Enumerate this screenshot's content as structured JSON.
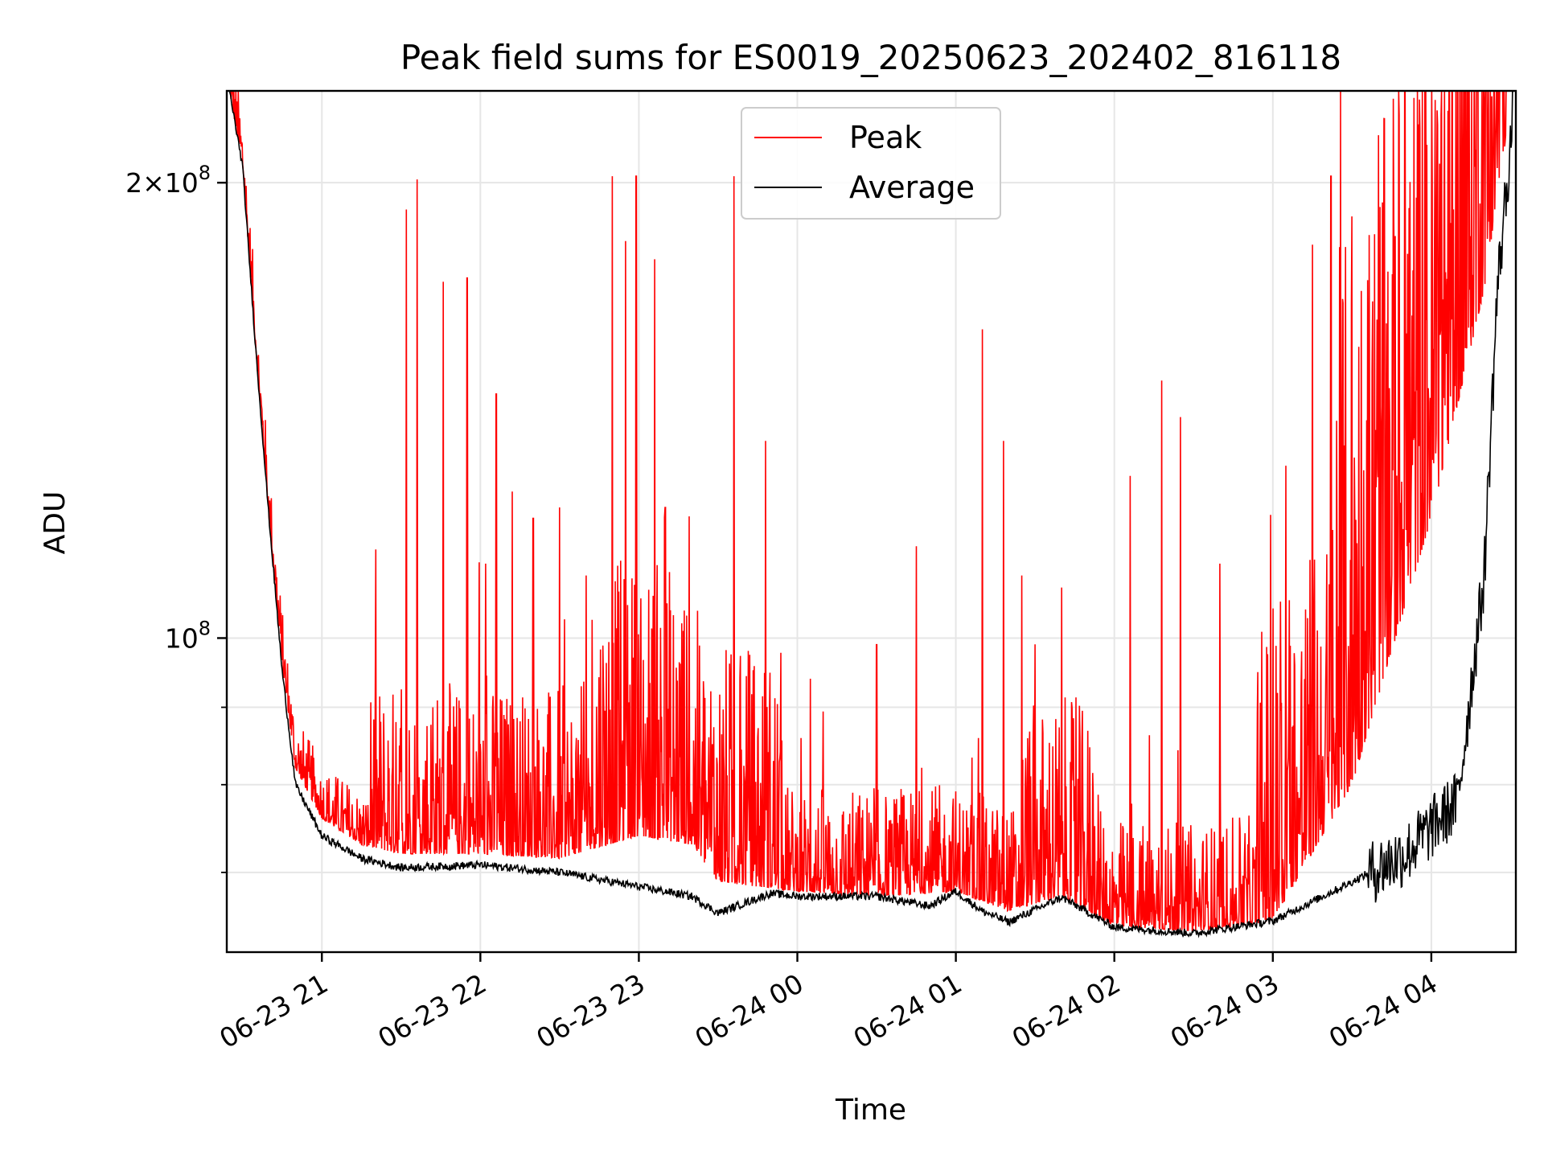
{
  "chart_data": {
    "type": "line",
    "title": "Peak field sums for ES0019_20250623_202402_816118",
    "xlabel": "Time",
    "ylabel": "ADU",
    "yscale": "log",
    "grid": true,
    "legend_placement": "upper-center",
    "xlim": [
      "2025-06-23 20:24",
      "2025-06-24 04:32"
    ],
    "ylim": [
      62000000,
      230000000
    ],
    "x_ticks": [
      {
        "value": "2025-06-23 21:00",
        "label": "06-23 21"
      },
      {
        "value": "2025-06-23 22:00",
        "label": "06-23 22"
      },
      {
        "value": "2025-06-23 23:00",
        "label": "06-23 23"
      },
      {
        "value": "2025-06-24 00:00",
        "label": "06-24 00"
      },
      {
        "value": "2025-06-24 01:00",
        "label": "06-24 01"
      },
      {
        "value": "2025-06-24 02:00",
        "label": "06-24 02"
      },
      {
        "value": "2025-06-24 03:00",
        "label": "06-24 03"
      },
      {
        "value": "2025-06-24 04:00",
        "label": "06-24 04"
      }
    ],
    "y_major_ticks": [
      {
        "value": 100000000,
        "label": "10^8"
      },
      {
        "value": 200000000,
        "label": "2×10^8"
      }
    ],
    "y_minor_ticks": [
      70000000,
      80000000,
      90000000
    ],
    "series": [
      {
        "name": "Peak",
        "color": "#ff0000",
        "baseline": [
          [
            "2025-06-23 20:25",
            230000000
          ],
          [
            "2025-06-23 20:30",
            205000000
          ],
          [
            "2025-06-23 20:35",
            155000000
          ],
          [
            "2025-06-23 20:40",
            120000000
          ],
          [
            "2025-06-23 20:45",
            96000000
          ],
          [
            "2025-06-23 20:50",
            82000000
          ],
          [
            "2025-06-23 21:00",
            76000000
          ],
          [
            "2025-06-23 21:15",
            73000000
          ],
          [
            "2025-06-23 21:30",
            72000000
          ],
          [
            "2025-06-23 22:00",
            72000000
          ],
          [
            "2025-06-23 22:30",
            71500000
          ],
          [
            "2025-06-23 23:00",
            74000000
          ],
          [
            "2025-06-23 23:20",
            73000000
          ],
          [
            "2025-06-23 23:30",
            69000000
          ],
          [
            "2025-06-24 00:00",
            68000000
          ],
          [
            "2025-06-24 00:30",
            67500000
          ],
          [
            "2025-06-24 01:00",
            68000000
          ],
          [
            "2025-06-24 01:20",
            66000000
          ],
          [
            "2025-06-24 01:40",
            67500000
          ],
          [
            "2025-06-24 02:00",
            64500000
          ],
          [
            "2025-06-24 02:30",
            64000000
          ],
          [
            "2025-06-24 03:00",
            65000000
          ],
          [
            "2025-06-24 03:30",
            80000000
          ],
          [
            "2025-06-24 04:00",
            120000000
          ],
          [
            "2025-06-24 04:20",
            170000000
          ],
          [
            "2025-06-24 04:30",
            225000000
          ]
        ],
        "spikes": [
          [
            "2025-06-23 21:28",
            88000000
          ],
          [
            "2025-06-23 21:32",
            192000000
          ],
          [
            "2025-06-23 21:36",
            201000000
          ],
          [
            "2025-06-23 21:42",
            90000000
          ],
          [
            "2025-06-23 21:46",
            172000000
          ],
          [
            "2025-06-23 21:55",
            173000000
          ],
          [
            "2025-06-23 22:02",
            112000000
          ],
          [
            "2025-06-23 22:06",
            145000000
          ],
          [
            "2025-06-23 22:12",
            125000000
          ],
          [
            "2025-06-23 22:20",
            120000000
          ],
          [
            "2025-06-23 22:30",
            122000000
          ],
          [
            "2025-06-23 22:40",
            110000000
          ],
          [
            "2025-06-23 22:50",
            202000000
          ],
          [
            "2025-06-23 22:55",
            183000000
          ],
          [
            "2025-06-23 22:59",
            202000000
          ],
          [
            "2025-06-23 23:06",
            178000000
          ],
          [
            "2025-06-23 23:10",
            122000000
          ],
          [
            "2025-06-23 23:36",
            202000000
          ],
          [
            "2025-06-23 23:48",
            135000000
          ],
          [
            "2025-06-24 00:05",
            94000000
          ],
          [
            "2025-06-24 00:30",
            99000000
          ],
          [
            "2025-06-24 00:45",
            115000000
          ],
          [
            "2025-06-24 01:10",
            160000000
          ],
          [
            "2025-06-24 01:18",
            135000000
          ],
          [
            "2025-06-24 01:25",
            110000000
          ],
          [
            "2025-06-24 01:40",
            108000000
          ],
          [
            "2025-06-24 01:52",
            79000000
          ],
          [
            "2025-06-24 02:06",
            128000000
          ],
          [
            "2025-06-24 02:18",
            148000000
          ],
          [
            "2025-06-24 02:25",
            140000000
          ],
          [
            "2025-06-24 02:40",
            112000000
          ],
          [
            "2025-06-24 03:05",
            130000000
          ],
          [
            "2025-06-24 03:15",
            182000000
          ],
          [
            "2025-06-24 03:22",
            202000000
          ],
          [
            "2025-06-24 03:30",
            190000000
          ],
          [
            "2025-06-24 03:40",
            215000000
          ],
          [
            "2025-06-24 03:50",
            230000000
          ],
          [
            "2025-06-24 04:05",
            230000000
          ],
          [
            "2025-06-24 04:20",
            230000000
          ]
        ]
      },
      {
        "name": "Average",
        "color": "#000000",
        "points": [
          [
            "2025-06-23 20:25",
            230000000
          ],
          [
            "2025-06-23 20:30",
            205000000
          ],
          [
            "2025-06-23 20:35",
            155000000
          ],
          [
            "2025-06-23 20:40",
            120000000
          ],
          [
            "2025-06-23 20:45",
            95000000
          ],
          [
            "2025-06-23 20:50",
            80000000
          ],
          [
            "2025-06-23 21:00",
            74000000
          ],
          [
            "2025-06-23 21:15",
            71500000
          ],
          [
            "2025-06-23 21:30",
            70500000
          ],
          [
            "2025-06-23 22:00",
            70800000
          ],
          [
            "2025-06-23 22:30",
            70000000
          ],
          [
            "2025-06-23 23:00",
            68500000
          ],
          [
            "2025-06-23 23:20",
            67500000
          ],
          [
            "2025-06-23 23:30",
            65800000
          ],
          [
            "2025-06-23 23:50",
            67800000
          ],
          [
            "2025-06-24 00:00",
            67500000
          ],
          [
            "2025-06-24 00:30",
            67500000
          ],
          [
            "2025-06-24 00:50",
            66500000
          ],
          [
            "2025-06-24 01:00",
            68000000
          ],
          [
            "2025-06-24 01:10",
            66000000
          ],
          [
            "2025-06-24 01:20",
            64900000
          ],
          [
            "2025-06-24 01:40",
            67400000
          ],
          [
            "2025-06-24 02:00",
            64400000
          ],
          [
            "2025-06-24 02:30",
            63800000
          ],
          [
            "2025-06-24 03:00",
            65000000
          ],
          [
            "2025-06-24 03:30",
            69000000
          ],
          [
            "2025-06-24 03:50",
            72000000
          ],
          [
            "2025-06-24 04:10",
            78000000
          ],
          [
            "2025-06-24 04:20",
            110000000
          ],
          [
            "2025-06-24 04:25",
            170000000
          ],
          [
            "2025-06-24 04:31",
            222000000
          ]
        ]
      }
    ]
  }
}
